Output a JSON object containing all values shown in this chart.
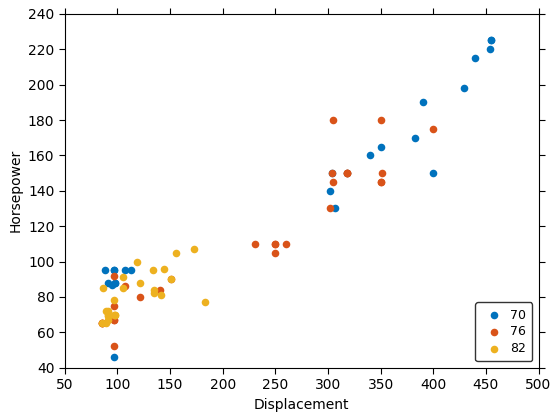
{
  "series": {
    "70": {
      "displacement": [
        307,
        350,
        318,
        304,
        302,
        429,
        454,
        440,
        455,
        390,
        383,
        340,
        400,
        455,
        97,
        95,
        88,
        107,
        98,
        98,
        113,
        97,
        97,
        91
      ],
      "horsepower": [
        130,
        165,
        150,
        150,
        140,
        198,
        220,
        215,
        225,
        190,
        170,
        160,
        150,
        225,
        46,
        87,
        95,
        95,
        88,
        88,
        95,
        95,
        95,
        88
      ],
      "color": "#0072BD"
    },
    "76": {
      "displacement": [
        250,
        400,
        351,
        318,
        250,
        318,
        302,
        304,
        97,
        85,
        97,
        140,
        107,
        121,
        97,
        151,
        250,
        305,
        350,
        318,
        260,
        231,
        350,
        97,
        85,
        97,
        85,
        305,
        350
      ],
      "horsepower": [
        105,
        175,
        150,
        150,
        110,
        150,
        130,
        150,
        52,
        65,
        92,
        84,
        86,
        80,
        75,
        90,
        110,
        145,
        145,
        150,
        110,
        110,
        145,
        67,
        65,
        67,
        65,
        180,
        180
      ],
      "color": "#D95319"
    },
    "82": {
      "displacement": [
        98,
        97,
        121,
        134,
        119,
        91,
        97,
        89,
        86,
        144,
        183,
        141,
        105,
        135,
        91,
        151,
        156,
        173,
        135,
        98,
        89,
        91,
        91,
        105,
        85
      ],
      "horsepower": [
        70,
        70,
        88,
        95,
        100,
        67,
        78,
        72,
        85,
        96,
        77,
        81,
        91,
        84,
        70,
        90,
        105,
        107,
        82,
        70,
        65,
        69,
        72,
        85,
        65
      ],
      "color": "#EDB120"
    }
  },
  "xlabel": "Displacement",
  "ylabel": "Horsepower",
  "xlim": [
    50,
    500
  ],
  "ylim": [
    40,
    240
  ],
  "xticks": [
    50,
    100,
    150,
    200,
    250,
    300,
    350,
    400,
    450,
    500
  ],
  "yticks": [
    40,
    60,
    80,
    100,
    120,
    140,
    160,
    180,
    200,
    220,
    240
  ],
  "marker_size": 30,
  "legend_labels": [
    "70",
    "76",
    "82"
  ],
  "fig_width": 5.6,
  "fig_height": 4.2,
  "dpi": 100
}
